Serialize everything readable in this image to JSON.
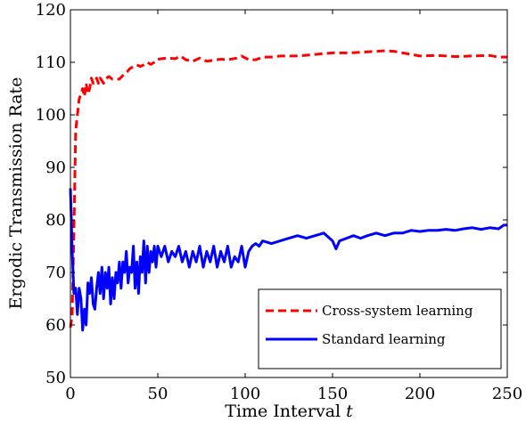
{
  "chart_data": {
    "type": "line",
    "xlabel": "Time Interval",
    "xlabel_var": "t",
    "ylabel": "Ergodic Transmission Rate",
    "xlim": [
      0,
      250
    ],
    "ylim": [
      50,
      120
    ],
    "xticks": [
      0,
      50,
      100,
      150,
      200,
      250
    ],
    "yticks": [
      50,
      60,
      70,
      80,
      90,
      100,
      110,
      120
    ],
    "grid": false,
    "legend_position": "bottom-right",
    "series": [
      {
        "name": "Cross-system learning",
        "color": "#ff0000",
        "style": "dashed",
        "points": [
          [
            0,
            59.5
          ],
          [
            1,
            62
          ],
          [
            2,
            78
          ],
          [
            3,
            97
          ],
          [
            4,
            100
          ],
          [
            5,
            103
          ],
          [
            6,
            104
          ],
          [
            7,
            105
          ],
          [
            8,
            103.5
          ],
          [
            9,
            106
          ],
          [
            10,
            104
          ],
          [
            11,
            105
          ],
          [
            12,
            107
          ],
          [
            13,
            106
          ],
          [
            14,
            106
          ],
          [
            15,
            107
          ],
          [
            16,
            106
          ],
          [
            17,
            107
          ],
          [
            18,
            106.5
          ],
          [
            19,
            106
          ],
          [
            20,
            106.8
          ],
          [
            22,
            107.3
          ],
          [
            24,
            106.8
          ],
          [
            26,
            106.8
          ],
          [
            28,
            106.8
          ],
          [
            30,
            107.5
          ],
          [
            32,
            108
          ],
          [
            34,
            108.8
          ],
          [
            36,
            109.2
          ],
          [
            38,
            109.5
          ],
          [
            40,
            109.2
          ],
          [
            42,
            109.5
          ],
          [
            44,
            110
          ],
          [
            46,
            109.6
          ],
          [
            48,
            110
          ],
          [
            50,
            110.6
          ],
          [
            55,
            110.8
          ],
          [
            60,
            110.7
          ],
          [
            63,
            111.2
          ],
          [
            66,
            110.5
          ],
          [
            70,
            110.2
          ],
          [
            74,
            110.8
          ],
          [
            78,
            110.2
          ],
          [
            82,
            110.4
          ],
          [
            86,
            110.6
          ],
          [
            90,
            110.5
          ],
          [
            95,
            110.8
          ],
          [
            98,
            111.2
          ],
          [
            102,
            110.5
          ],
          [
            106,
            110.5
          ],
          [
            110,
            111
          ],
          [
            115,
            111
          ],
          [
            120,
            111.2
          ],
          [
            125,
            111.2
          ],
          [
            130,
            111.2
          ],
          [
            140,
            111.5
          ],
          [
            150,
            111.8
          ],
          [
            160,
            111.8
          ],
          [
            170,
            112
          ],
          [
            180,
            112.2
          ],
          [
            185,
            112.1
          ],
          [
            190,
            111.8
          ],
          [
            195,
            111.5
          ],
          [
            200,
            111.2
          ],
          [
            210,
            111.3
          ],
          [
            220,
            111.1
          ],
          [
            230,
            111.2
          ],
          [
            240,
            111.3
          ],
          [
            245,
            111
          ],
          [
            250,
            111
          ]
        ]
      },
      {
        "name": "Standard learning",
        "color": "#0000ff",
        "style": "solid",
        "points": [
          [
            0,
            86
          ],
          [
            1,
            74
          ],
          [
            2,
            66
          ],
          [
            3,
            67
          ],
          [
            4,
            62
          ],
          [
            5,
            67
          ],
          [
            6,
            65
          ],
          [
            7,
            59
          ],
          [
            8,
            63
          ],
          [
            9,
            60
          ],
          [
            10,
            68
          ],
          [
            11,
            66
          ],
          [
            12,
            69
          ],
          [
            13,
            64
          ],
          [
            14,
            63
          ],
          [
            15,
            67
          ],
          [
            16,
            70
          ],
          [
            17,
            66
          ],
          [
            18,
            71
          ],
          [
            19,
            65
          ],
          [
            20,
            70
          ],
          [
            21,
            67
          ],
          [
            22,
            71
          ],
          [
            23,
            64
          ],
          [
            24,
            69
          ],
          [
            25,
            65
          ],
          [
            26,
            70
          ],
          [
            27,
            68
          ],
          [
            28,
            72
          ],
          [
            29,
            67
          ],
          [
            30,
            72
          ],
          [
            31,
            70
          ],
          [
            32,
            74
          ],
          [
            33,
            68
          ],
          [
            34,
            71
          ],
          [
            35,
            70
          ],
          [
            36,
            75
          ],
          [
            37,
            67
          ],
          [
            38,
            72
          ],
          [
            39,
            66
          ],
          [
            40,
            73
          ],
          [
            41,
            70
          ],
          [
            42,
            76
          ],
          [
            43,
            68
          ],
          [
            44,
            75
          ],
          [
            45,
            70
          ],
          [
            46,
            74
          ],
          [
            47,
            72
          ],
          [
            48,
            75
          ],
          [
            49,
            71
          ],
          [
            50,
            75
          ],
          [
            52,
            73
          ],
          [
            54,
            75
          ],
          [
            56,
            72
          ],
          [
            58,
            74
          ],
          [
            60,
            73
          ],
          [
            62,
            75
          ],
          [
            64,
            72
          ],
          [
            66,
            74
          ],
          [
            68,
            71
          ],
          [
            70,
            74
          ],
          [
            72,
            72
          ],
          [
            74,
            75
          ],
          [
            76,
            71
          ],
          [
            78,
            74
          ],
          [
            80,
            72
          ],
          [
            82,
            75
          ],
          [
            84,
            71
          ],
          [
            86,
            74
          ],
          [
            88,
            72
          ],
          [
            90,
            75
          ],
          [
            92,
            71
          ],
          [
            94,
            73
          ],
          [
            96,
            72
          ],
          [
            98,
            75
          ],
          [
            100,
            71
          ],
          [
            102,
            74
          ],
          [
            104,
            75
          ],
          [
            106,
            75.5
          ],
          [
            108,
            75
          ],
          [
            110,
            76
          ],
          [
            115,
            75.5
          ],
          [
            120,
            76
          ],
          [
            125,
            76.5
          ],
          [
            130,
            77
          ],
          [
            135,
            76.5
          ],
          [
            140,
            77
          ],
          [
            145,
            77.5
          ],
          [
            150,
            76
          ],
          [
            152,
            74.5
          ],
          [
            154,
            76
          ],
          [
            158,
            76.5
          ],
          [
            162,
            77
          ],
          [
            166,
            76.5
          ],
          [
            170,
            77
          ],
          [
            175,
            77.5
          ],
          [
            180,
            77
          ],
          [
            185,
            77.5
          ],
          [
            190,
            77.5
          ],
          [
            195,
            78
          ],
          [
            200,
            77.8
          ],
          [
            205,
            78
          ],
          [
            210,
            78
          ],
          [
            215,
            78.2
          ],
          [
            220,
            78
          ],
          [
            225,
            78.3
          ],
          [
            230,
            78.5
          ],
          [
            235,
            78.2
          ],
          [
            240,
            78.5
          ],
          [
            245,
            78.3
          ],
          [
            248,
            79
          ],
          [
            250,
            79
          ]
        ]
      }
    ]
  }
}
